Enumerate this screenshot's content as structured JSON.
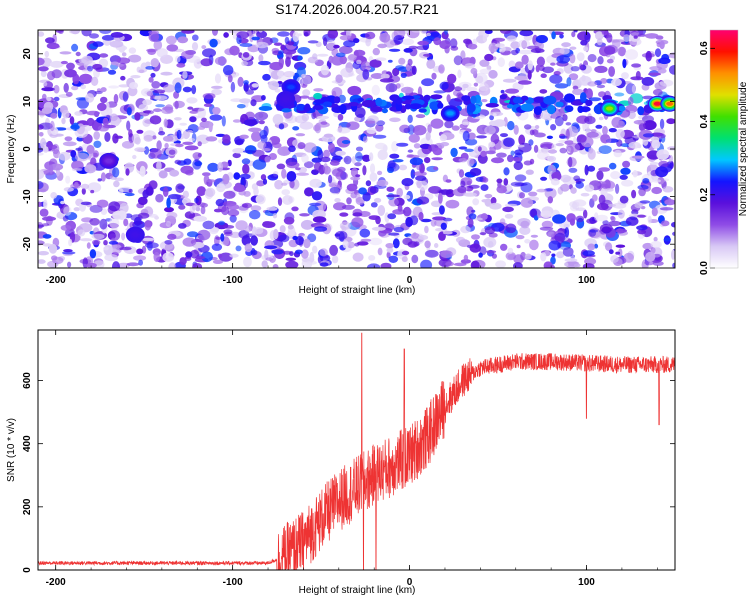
{
  "chart_data": [
    {
      "type": "heatmap",
      "title": "S174.2026.004.20.57.R21",
      "xlabel": "Height of straight line (km)",
      "ylabel": "Frequency (Hz)",
      "xlim": [
        -210,
        150
      ],
      "ylim": [
        -25,
        25
      ],
      "xticks": [
        -200,
        -100,
        0,
        100
      ],
      "yticks": [
        -20,
        -10,
        0,
        10,
        20
      ],
      "colorbar": {
        "label": "Normalized spectral amplitude",
        "range": [
          0.0,
          0.65
        ],
        "ticks": [
          0.0,
          0.2,
          0.4,
          0.6
        ],
        "colormap": [
          "#ffffff",
          "#d8c8f5",
          "#8f4ce6",
          "#5a10dc",
          "#1414ff",
          "#00c8ff",
          "#00e070",
          "#40e000",
          "#e0e000",
          "#ff9000",
          "#ff1000",
          "#ff0070"
        ]
      },
      "hotspots": [
        {
          "x": -67,
          "y": 13,
          "amp": 0.25
        },
        {
          "x": -70,
          "y": 10.5,
          "amp": 0.2
        },
        {
          "x": 23,
          "y": 7.5,
          "amp": 0.28
        },
        {
          "x": 113,
          "y": 8.5,
          "amp": 0.45
        },
        {
          "x": 140,
          "y": 9.5,
          "amp": 0.62
        },
        {
          "x": 147,
          "y": 9.5,
          "amp": 0.55
        },
        {
          "x": -155,
          "y": -18,
          "amp": 0.2
        },
        {
          "x": -170,
          "y": -2.5,
          "amp": 0.15
        }
      ],
      "band": {
        "x_from": -90,
        "x_to": 150,
        "y": 9.5
      }
    },
    {
      "type": "line",
      "xlabel": "Height of straight line (km)",
      "ylabel": "SNR (10 * v/v)",
      "xlim": [
        -210,
        150
      ],
      "ylim": [
        0,
        760
      ],
      "xticks": [
        -200,
        -100,
        0,
        100
      ],
      "yticks": [
        0,
        200,
        400,
        600
      ],
      "series": [
        {
          "name": "SNR",
          "color": "#ee3333",
          "profile": [
            [
              -210,
              22
            ],
            [
              -80,
              22
            ],
            [
              -72,
              40
            ],
            [
              -60,
              90
            ],
            [
              -50,
              160
            ],
            [
              -40,
              220
            ],
            [
              -30,
              260
            ],
            [
              -20,
              300
            ],
            [
              -10,
              330
            ],
            [
              0,
              360
            ],
            [
              10,
              420
            ],
            [
              20,
              520
            ],
            [
              30,
              600
            ],
            [
              40,
              640
            ],
            [
              60,
              660
            ],
            [
              80,
              660
            ],
            [
              100,
              655
            ],
            [
              120,
              650
            ],
            [
              150,
              650
            ]
          ],
          "spikes": [
            {
              "x": -27,
              "value": 750
            },
            {
              "x": -3,
              "value": 700
            },
            {
              "x": -26,
              "value": 0
            },
            {
              "x": -19,
              "value": 0
            },
            {
              "x": 100,
              "value": 480
            },
            {
              "x": 141,
              "value": 460
            }
          ]
        }
      ]
    }
  ]
}
